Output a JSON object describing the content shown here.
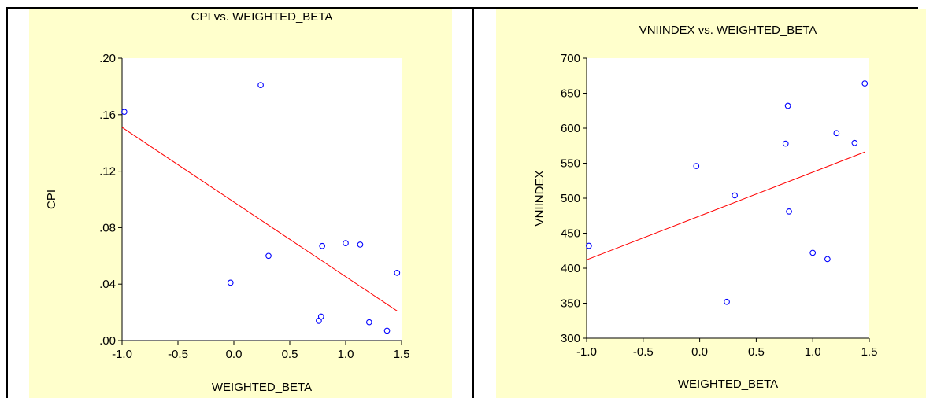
{
  "panel_background": "#ffffcc",
  "point_color": "#0000ff",
  "line_color": "#ff0000",
  "chart_data": [
    {
      "type": "scatter",
      "title": "CPI vs. WEIGHTED_BETA",
      "xlabel": "WEIGHTED_BETA",
      "ylabel": "CPI",
      "xlim": [
        -1.0,
        1.5
      ],
      "ylim": [
        0.0,
        0.2
      ],
      "x_ticks": [
        "-1.0",
        "-0.5",
        "0.0",
        "0.5",
        "1.0",
        "1.5"
      ],
      "x_tick_values": [
        -1.0,
        -0.5,
        0.0,
        0.5,
        1.0,
        1.5
      ],
      "y_ticks": [
        ".00",
        ".04",
        ".08",
        ".12",
        ".16",
        ".20"
      ],
      "y_tick_values": [
        0.0,
        0.04,
        0.08,
        0.12,
        0.16,
        0.2
      ],
      "points": [
        {
          "x": -0.98,
          "y": 0.162
        },
        {
          "x": -0.03,
          "y": 0.041
        },
        {
          "x": 0.24,
          "y": 0.181
        },
        {
          "x": 0.31,
          "y": 0.06
        },
        {
          "x": 0.76,
          "y": 0.014
        },
        {
          "x": 0.78,
          "y": 0.017
        },
        {
          "x": 0.79,
          "y": 0.067
        },
        {
          "x": 1.0,
          "y": 0.069
        },
        {
          "x": 1.13,
          "y": 0.068
        },
        {
          "x": 1.21,
          "y": 0.013
        },
        {
          "x": 1.37,
          "y": 0.007
        },
        {
          "x": 1.46,
          "y": 0.048
        }
      ],
      "fit_line": [
        {
          "x": -1.0,
          "y": 0.151
        },
        {
          "x": 1.46,
          "y": 0.021
        }
      ]
    },
    {
      "type": "scatter",
      "title": "VNIINDEX vs. WEIGHTED_BETA",
      "xlabel": "WEIGHTED_BETA",
      "ylabel": "VNIINDEX",
      "xlim": [
        -1.0,
        1.5
      ],
      "ylim": [
        300,
        700
      ],
      "x_ticks": [
        "-1.0",
        "-0.5",
        "0.0",
        "0.5",
        "1.0",
        "1.5"
      ],
      "x_tick_values": [
        -1.0,
        -0.5,
        0.0,
        0.5,
        1.0,
        1.5
      ],
      "y_ticks": [
        "300",
        "350",
        "400",
        "450",
        "500",
        "550",
        "600",
        "650",
        "700"
      ],
      "y_tick_values": [
        300,
        350,
        400,
        450,
        500,
        550,
        600,
        650,
        700
      ],
      "points": [
        {
          "x": -0.98,
          "y": 432
        },
        {
          "x": -0.03,
          "y": 546
        },
        {
          "x": 0.24,
          "y": 352
        },
        {
          "x": 0.31,
          "y": 504
        },
        {
          "x": 0.76,
          "y": 578
        },
        {
          "x": 0.78,
          "y": 632
        },
        {
          "x": 0.79,
          "y": 481
        },
        {
          "x": 1.0,
          "y": 422
        },
        {
          "x": 1.13,
          "y": 413
        },
        {
          "x": 1.21,
          "y": 593
        },
        {
          "x": 1.37,
          "y": 579
        },
        {
          "x": 1.46,
          "y": 664
        }
      ],
      "fit_line": [
        {
          "x": -1.0,
          "y": 412
        },
        {
          "x": 1.46,
          "y": 566
        }
      ]
    }
  ]
}
